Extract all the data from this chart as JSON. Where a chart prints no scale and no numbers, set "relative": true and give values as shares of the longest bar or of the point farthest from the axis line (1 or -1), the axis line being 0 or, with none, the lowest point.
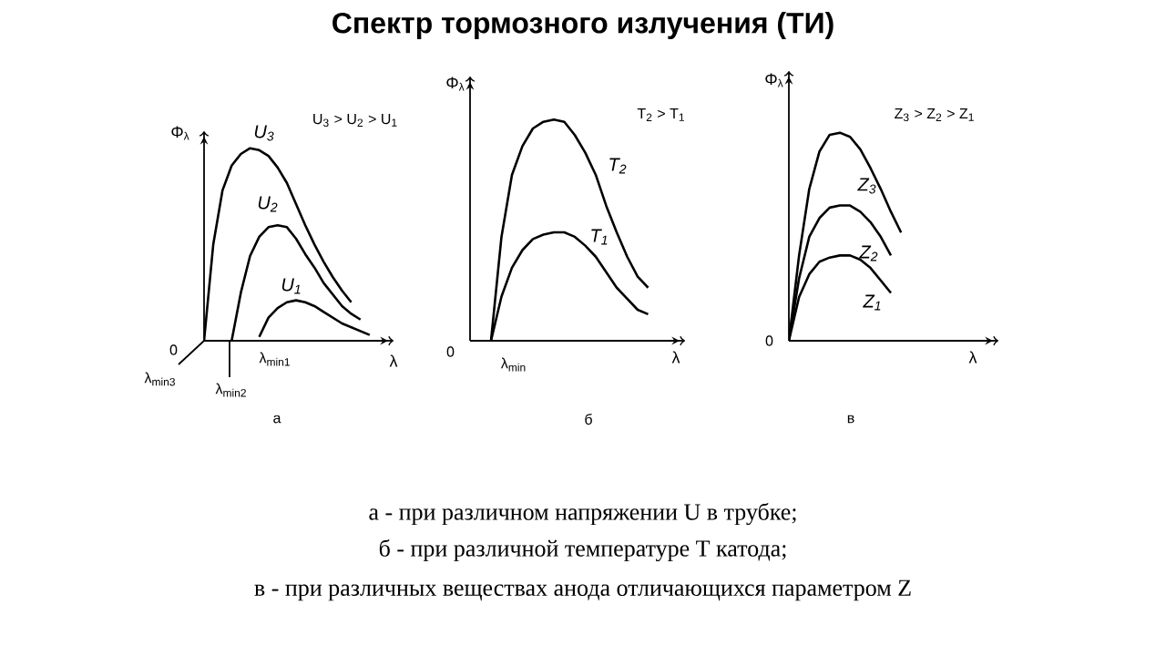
{
  "chart_data": [
    {
      "type": "line",
      "relative": true,
      "title": "Спектр тормозного излучения (ТИ)",
      "xlabel": "λ",
      "ylabel": "Φ$_{λ}$",
      "categories": [
        null,
        null,
        null,
        null,
        null,
        null,
        null,
        null,
        null,
        null,
        null,
        null,
        null,
        null,
        null,
        null,
        null,
        null,
        null,
        null,
        null
      ],
      "series": [
        {
          "name": "U$_{3}$",
          "color": "#000000",
          "values": [
            0,
            0.5,
            0.78,
            0.91,
            0.97,
            1.0,
            0.99,
            0.96,
            0.9,
            0.82,
            0.71,
            0.6,
            0.5,
            0.41,
            0.33,
            0.26,
            0.2,
            null,
            null,
            null,
            null
          ]
        },
        {
          "name": "U$_{2}$",
          "color": "#000000",
          "values": [
            null,
            null,
            null,
            0,
            0.25,
            0.44,
            0.54,
            0.59,
            0.6,
            0.59,
            0.53,
            0.45,
            0.38,
            0.3,
            0.24,
            0.18,
            0.14,
            0.11,
            null,
            null,
            null
          ]
        },
        {
          "name": "U$_{1}$",
          "color": "#000000",
          "values": [
            null,
            null,
            null,
            null,
            null,
            null,
            0.02,
            0.12,
            0.17,
            0.2,
            0.21,
            0.2,
            0.18,
            0.15,
            0.12,
            0.09,
            0.07,
            0.05,
            0.03,
            null,
            null
          ]
        }
      ],
      "annotations": [
        "0",
        "λ$_{min3}$",
        "λ$_{min2}$",
        "λ$_{min1}$",
        "U$_{3}$ > U$_{2}$ > U$_{1}$",
        "а",
        "а - при различном напряжении U в трубке;"
      ]
    },
    {
      "type": "line",
      "relative": true,
      "xlabel": "λ",
      "ylabel": "Φ$_{λ}$",
      "categories": [
        null,
        null,
        null,
        null,
        null,
        null,
        null,
        null,
        null,
        null,
        null,
        null,
        null,
        null,
        null,
        null,
        null,
        null,
        null,
        null,
        null
      ],
      "series": [
        {
          "name": "T$_{2}$",
          "color": "#000000",
          "values": [
            null,
            null,
            0,
            0.47,
            0.75,
            0.88,
            0.96,
            0.99,
            1.0,
            0.99,
            0.93,
            0.85,
            0.75,
            0.61,
            0.49,
            0.38,
            0.29,
            0.24,
            null,
            null,
            null
          ]
        },
        {
          "name": "T$_{1}$",
          "color": "#000000",
          "values": [
            null,
            null,
            0,
            0.2,
            0.33,
            0.41,
            0.46,
            0.48,
            0.49,
            0.49,
            0.47,
            0.43,
            0.38,
            0.31,
            0.24,
            0.19,
            0.14,
            0.12,
            null,
            null,
            null
          ]
        }
      ],
      "annotations": [
        "0",
        "λ$_{min}$",
        "T$_{2}$ > T$_{1}$",
        "б",
        "б - при различной температуре T катода;"
      ]
    },
    {
      "type": "line",
      "relative": true,
      "xlabel": "λ",
      "ylabel": "Φ$_{λ}$",
      "categories": [
        null,
        null,
        null,
        null,
        null,
        null,
        null,
        null,
        null,
        null,
        null,
        null,
        null,
        null,
        null,
        null,
        null,
        null,
        null,
        null,
        null
      ],
      "series": [
        {
          "name": "Z$_{3}$",
          "color": "#000000",
          "values": [
            0,
            0.41,
            0.73,
            0.91,
            0.99,
            1.0,
            0.98,
            0.92,
            0.83,
            0.73,
            0.62,
            0.52,
            null,
            null,
            null,
            null,
            null,
            null,
            null,
            null,
            null
          ]
        },
        {
          "name": "Z$_{2}$",
          "color": "#000000",
          "values": [
            0,
            0.3,
            0.5,
            0.59,
            0.64,
            0.65,
            0.65,
            0.62,
            0.57,
            0.5,
            0.41,
            null,
            null,
            null,
            null,
            null,
            null,
            null,
            null,
            null,
            null
          ]
        },
        {
          "name": "Z$_{1}$",
          "color": "#000000",
          "values": [
            0,
            0.21,
            0.32,
            0.38,
            0.4,
            0.41,
            0.41,
            0.39,
            0.35,
            0.29,
            0.23,
            null,
            null,
            null,
            null,
            null,
            null,
            null,
            null,
            null,
            null
          ]
        }
      ],
      "annotations": [
        "0",
        "Z$_{3}$ > Z$_{2}$ > Z$_{1}$",
        "в",
        "в - при различных веществах анода отличающихся параметром Z"
      ]
    }
  ]
}
